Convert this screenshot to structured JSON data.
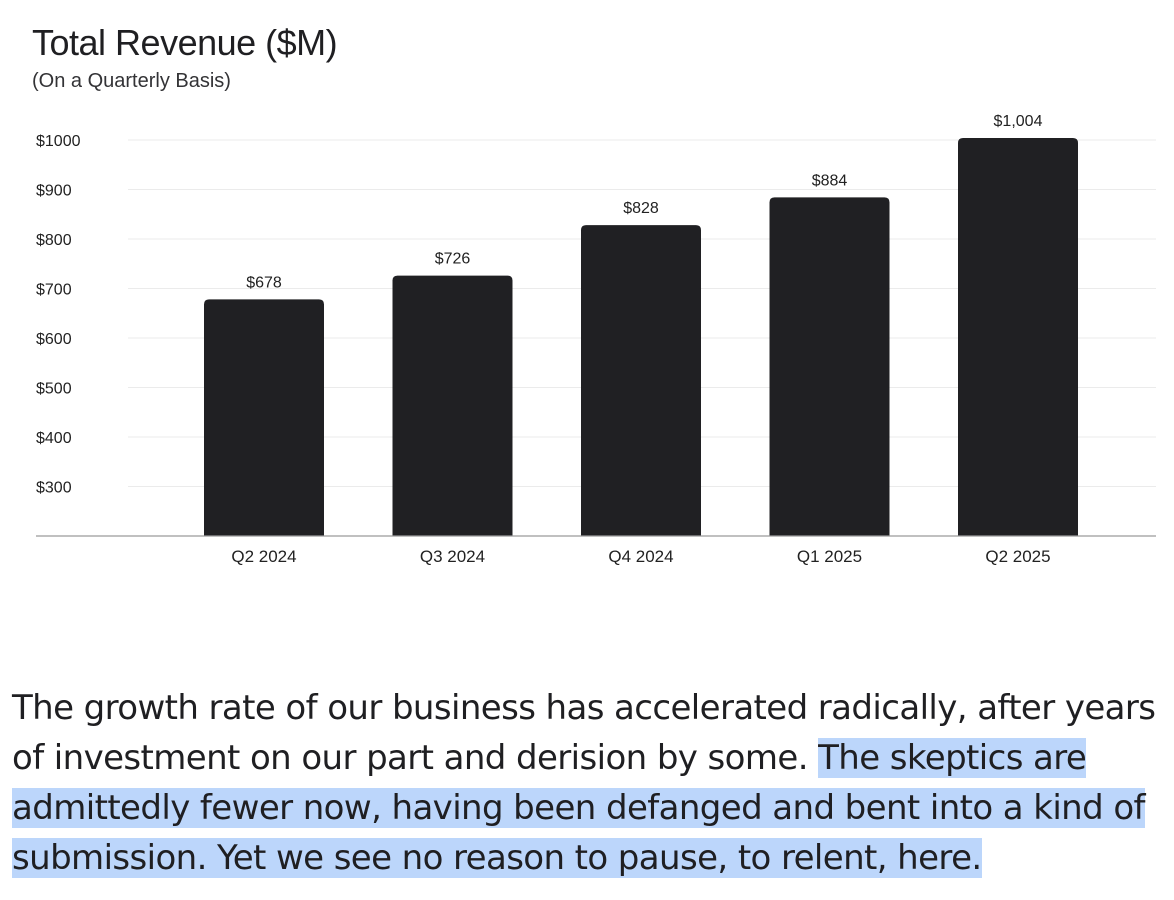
{
  "chart_data": {
    "type": "bar",
    "title": "Total Revenue ($M)",
    "subtitle": "(On a Quarterly Basis)",
    "categories": [
      "Q2 2024",
      "Q3 2024",
      "Q4 2024",
      "Q1 2025",
      "Q2 2025"
    ],
    "values": [
      678,
      726,
      828,
      884,
      1004
    ],
    "data_labels": [
      "$678",
      "$726",
      "$828",
      "$884",
      "$1,004"
    ],
    "y_ticks": [
      300,
      400,
      500,
      600,
      700,
      800,
      900,
      1000
    ],
    "y_tick_labels": [
      "$300",
      "$400",
      "$500",
      "$600",
      "$700",
      "$800",
      "$900",
      "$1000"
    ],
    "ylim": [
      200,
      1000
    ],
    "grid": true,
    "bar_color": "#202023",
    "grid_color": "#ebebeb",
    "axis_color": "#9a9a9a"
  },
  "text": {
    "before_highlight": "The growth rate of our business has accelerated radically, after years of investment on our part and derision by some. ",
    "highlighted": "The skeptics are admittedly fewer now, having been defanged and bent into a kind of submission. Yet we see no reason to pause, to relent, here.",
    "highlight_color": "#bcd6fb"
  }
}
